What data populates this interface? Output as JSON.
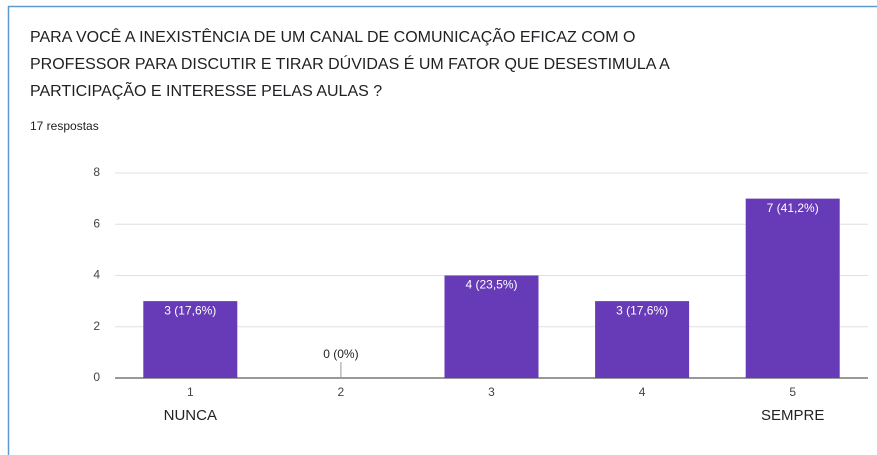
{
  "chart_data": {
    "type": "bar",
    "title": [
      "PARA VOCÊ A INEXISTÊNCIA DE UM CANAL DE COMUNICAÇÃO EFICAZ COM O",
      "PROFESSOR PARA DISCUTIR E TIRAR DÚVIDAS É UM FATOR QUE DESESTIMULA A",
      "PARTICIPAÇÃO E INTERESSE PELAS AULAS ?"
    ],
    "subtitle": "17 respostas",
    "categories": [
      "1",
      "2",
      "3",
      "4",
      "5"
    ],
    "category_sublabels": [
      "NUNCA",
      null,
      null,
      null,
      "SEMPRE"
    ],
    "values": [
      3,
      0,
      4,
      3,
      7
    ],
    "value_labels": [
      "3 (17,6%)",
      "0 (0%)",
      "4 (23,5%)",
      "3 (17,6%)",
      "7 (41,2%)"
    ],
    "color": "#673ab7",
    "ylim": [
      0,
      8
    ],
    "yticks": [
      0,
      2,
      4,
      6,
      8
    ],
    "grid": true
  }
}
